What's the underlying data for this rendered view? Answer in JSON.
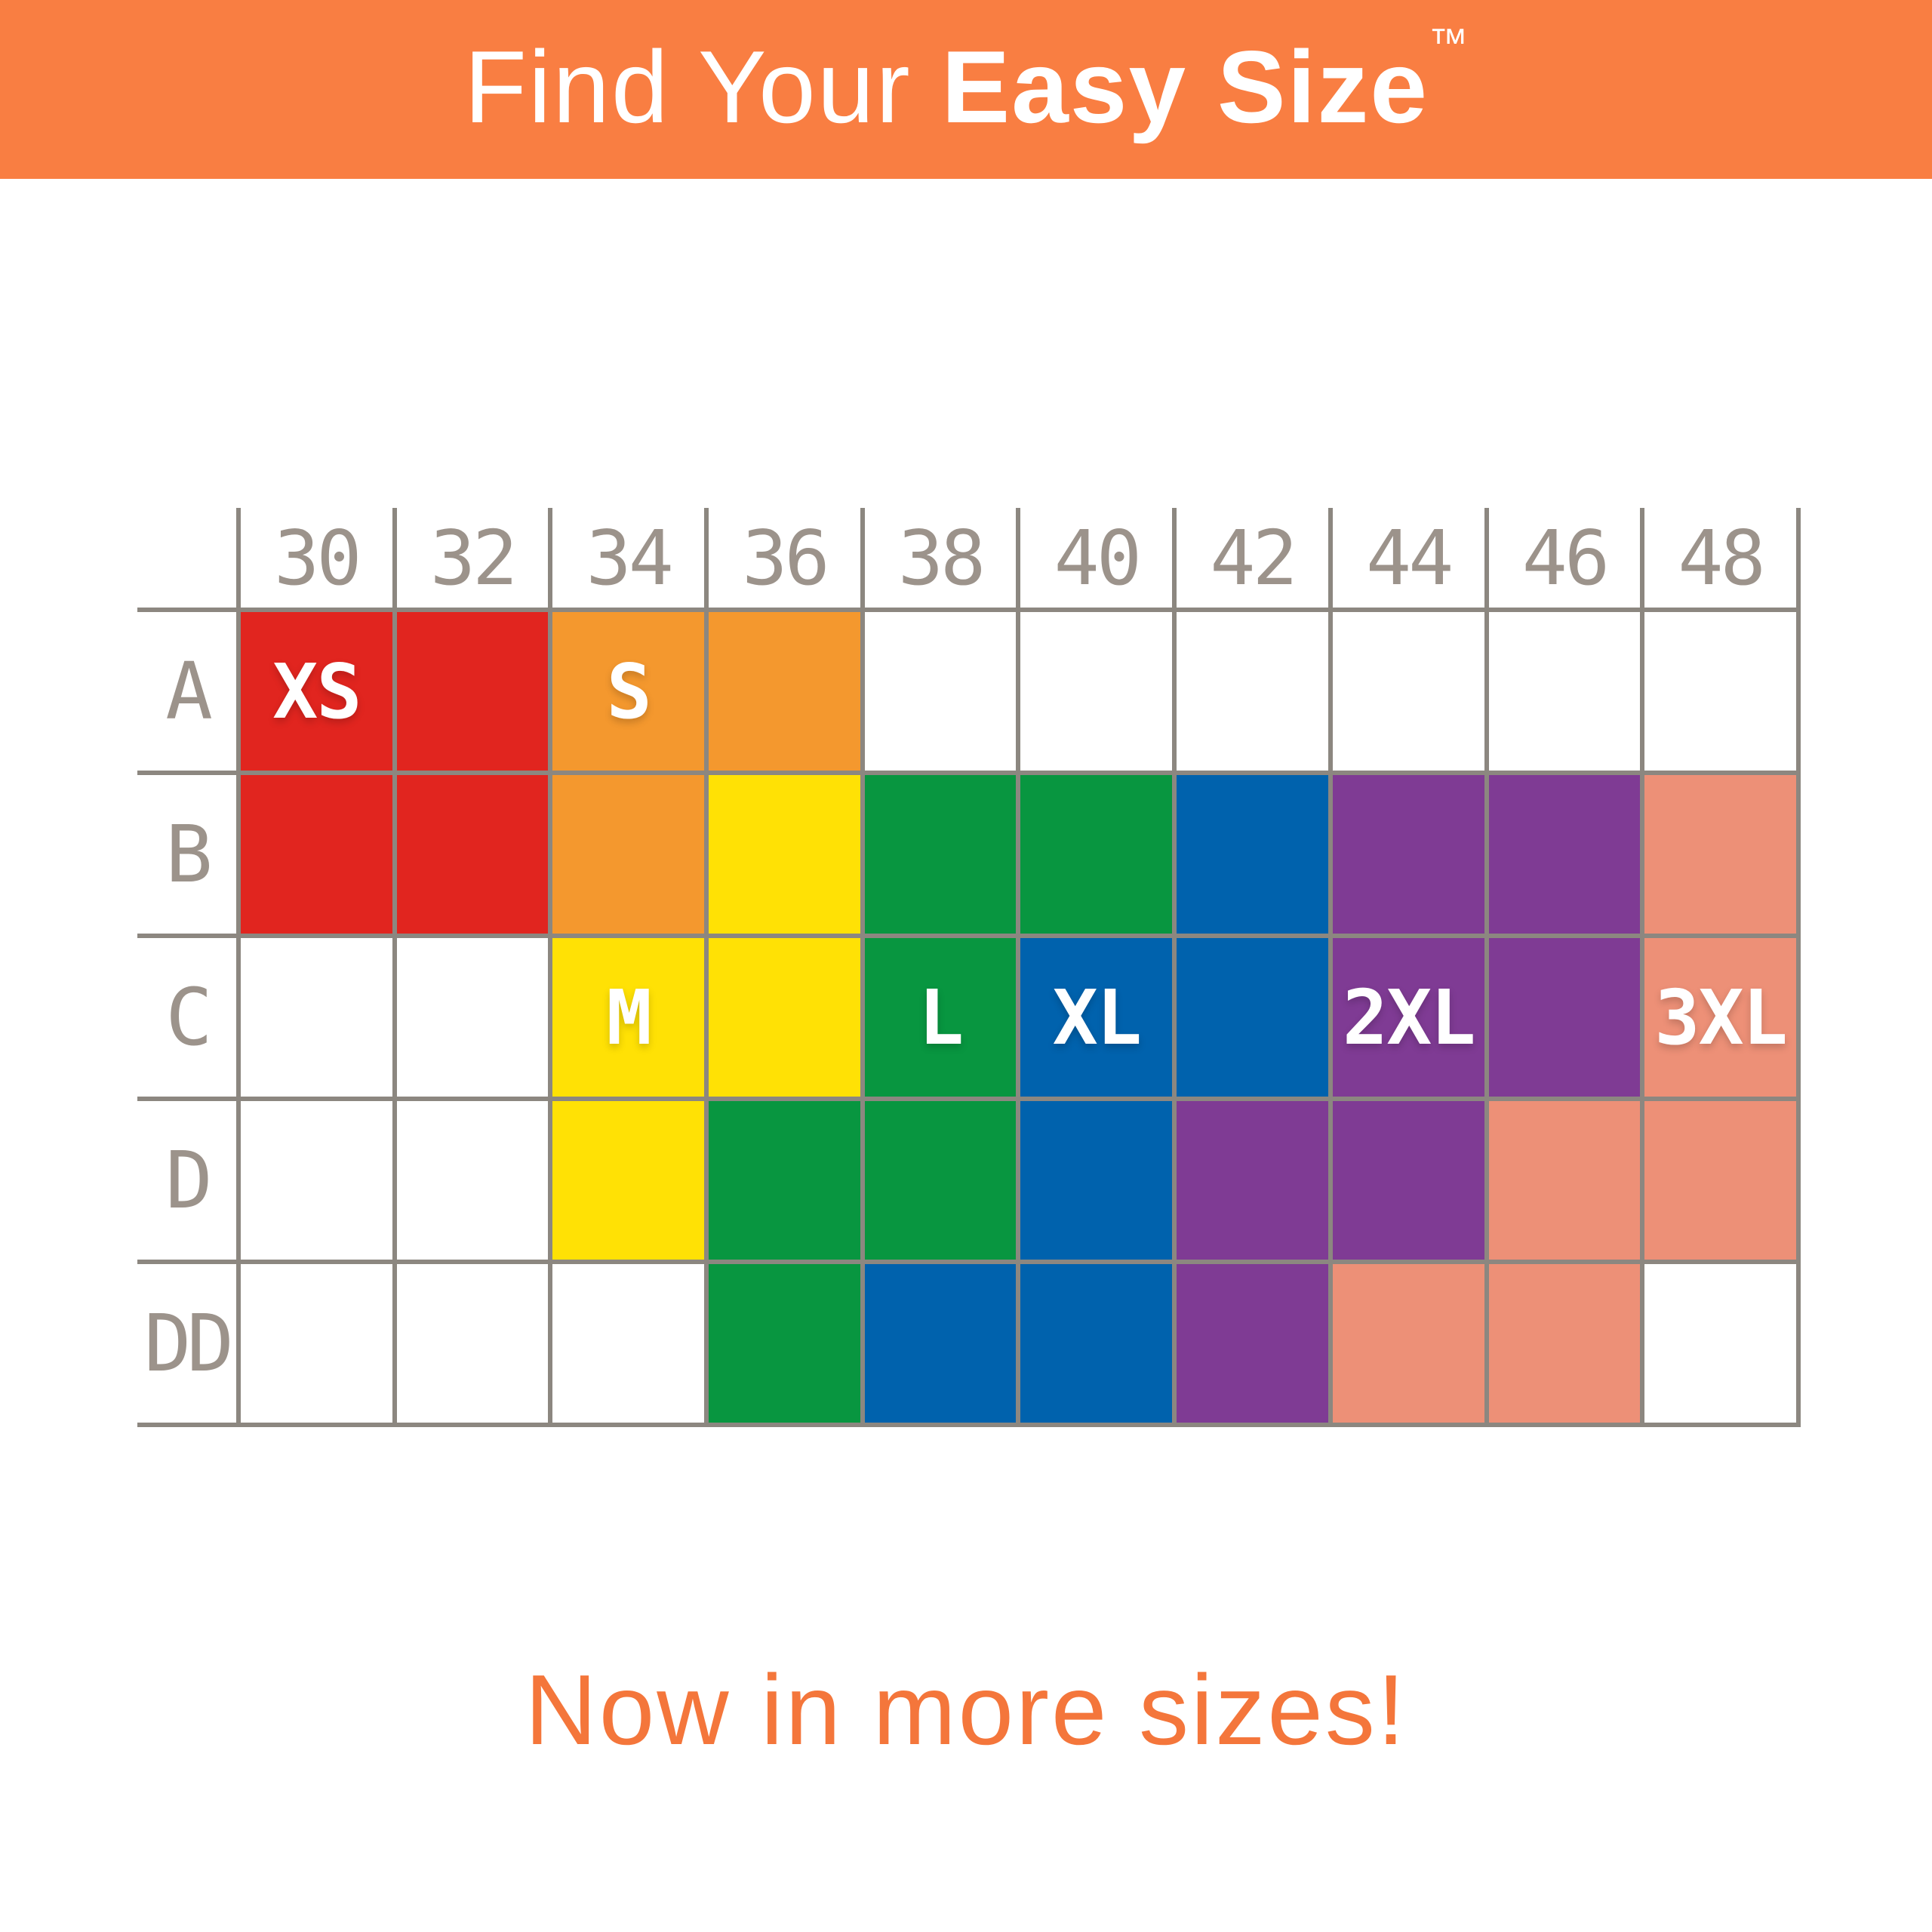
{
  "banner": {
    "title_prefix": "Find Your ",
    "title_emphasis": "Easy Size",
    "trademark": "™",
    "background": "#f97e42",
    "text_color": "#ffffff"
  },
  "tagline": {
    "text": "Now in more sizes!",
    "color": "#f4763b"
  },
  "grid": {
    "line_color": "#8c8780",
    "axis_text_color": "#9c938b",
    "cell_label_color": "#ffffff"
  },
  "chart_data": {
    "type": "heatmap",
    "title": "Find Your Easy Size™",
    "x_categories": [
      "30",
      "32",
      "34",
      "36",
      "38",
      "40",
      "42",
      "44",
      "46",
      "48"
    ],
    "y_categories": [
      "A",
      "B",
      "C",
      "D",
      "DD"
    ],
    "legend_position": "in-cell labels",
    "grid": true,
    "sizes": [
      {
        "code": "XS",
        "color": "#e1251f"
      },
      {
        "code": "S",
        "color": "#f4982e"
      },
      {
        "code": "M",
        "color": "#ffe105"
      },
      {
        "code": "L",
        "color": "#089640"
      },
      {
        "code": "XL",
        "color": "#0062ad"
      },
      {
        "code": "2XL",
        "color": "#7f3b94"
      },
      {
        "code": "3XL",
        "color": "#ed9077"
      }
    ],
    "rows": [
      {
        "cup": "A",
        "cells": [
          "XS",
          "XS",
          "S",
          "S",
          "",
          "",
          "",
          "",
          "",
          ""
        ],
        "labels": [
          "XS",
          "",
          "S",
          "",
          "",
          "",
          "",
          "",
          "",
          ""
        ]
      },
      {
        "cup": "B",
        "cells": [
          "XS",
          "XS",
          "S",
          "M",
          "L",
          "L",
          "XL",
          "2XL",
          "2XL",
          "3XL"
        ],
        "labels": [
          "",
          "",
          "",
          "",
          "",
          "",
          "",
          "",
          "",
          ""
        ]
      },
      {
        "cup": "C",
        "cells": [
          "",
          "",
          "M",
          "M",
          "L",
          "XL",
          "XL",
          "2XL",
          "2XL",
          "3XL"
        ],
        "labels": [
          "",
          "",
          "M",
          "",
          "L",
          "XL",
          "",
          "2XL",
          "",
          "3XL"
        ]
      },
      {
        "cup": "D",
        "cells": [
          "",
          "",
          "M",
          "L",
          "L",
          "XL",
          "2XL",
          "2XL",
          "3XL",
          "3XL"
        ],
        "labels": [
          "",
          "",
          "",
          "",
          "",
          "",
          "",
          "",
          "",
          ""
        ]
      },
      {
        "cup": "DD",
        "cells": [
          "",
          "",
          "",
          "L",
          "XL",
          "XL",
          "2XL",
          "3XL",
          "3XL",
          ""
        ],
        "labels": [
          "",
          "",
          "",
          "",
          "",
          "",
          "",
          "",
          "",
          ""
        ]
      }
    ]
  }
}
